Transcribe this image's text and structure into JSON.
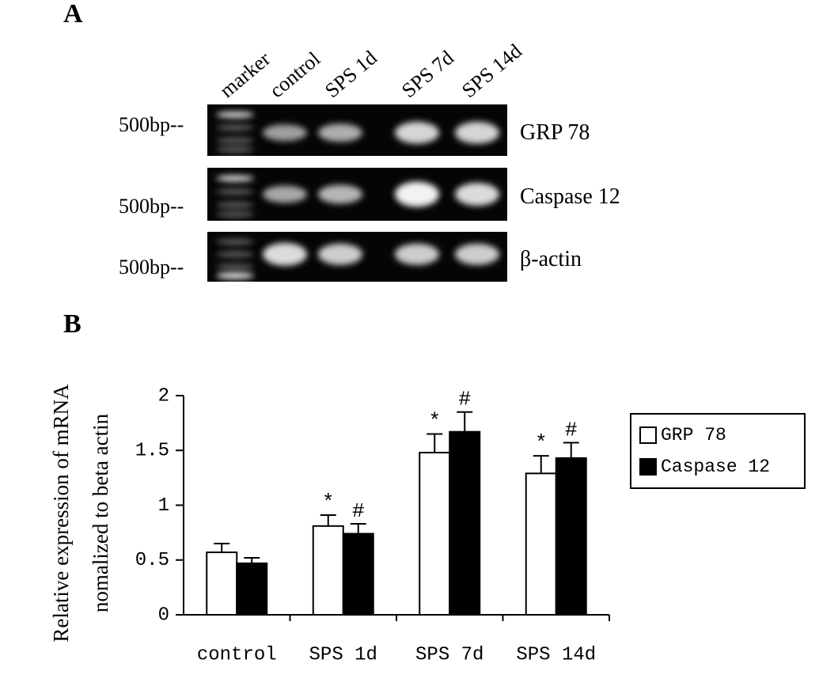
{
  "panel_a": {
    "label": "A",
    "lanes": [
      "marker",
      "control",
      "SPS 1d",
      "SPS 7d",
      "SPS 14d"
    ],
    "rows": [
      {
        "name": "GRP 78",
        "size_label": "500bp--"
      },
      {
        "name": "Caspase 12",
        "size_label": "500bp--"
      },
      {
        "name": "β-actin",
        "size_label": "500bp--"
      }
    ]
  },
  "chart_data": {
    "type": "bar",
    "panel_label": "B",
    "y_label": [
      "Relative expression of mRNA",
      "nomalized to beta actin"
    ],
    "categories": [
      "control",
      "SPS 1d",
      "SPS 7d",
      "SPS 14d"
    ],
    "series": [
      {
        "name": "GRP 78",
        "color": "#ffffff",
        "values": [
          0.57,
          0.81,
          1.48,
          1.29
        ],
        "errors": [
          0.08,
          0.1,
          0.17,
          0.16
        ],
        "markers": [
          null,
          "*",
          "*",
          "*"
        ]
      },
      {
        "name": "Caspase 12",
        "color": "#000000",
        "values": [
          0.47,
          0.74,
          1.67,
          1.43
        ],
        "errors": [
          0.05,
          0.09,
          0.18,
          0.14
        ],
        "markers": [
          null,
          "#",
          "#",
          "#"
        ]
      }
    ],
    "ylim": [
      0,
      2
    ],
    "yticks": [
      0,
      0.5,
      1,
      1.5,
      2
    ],
    "legend": "right"
  }
}
